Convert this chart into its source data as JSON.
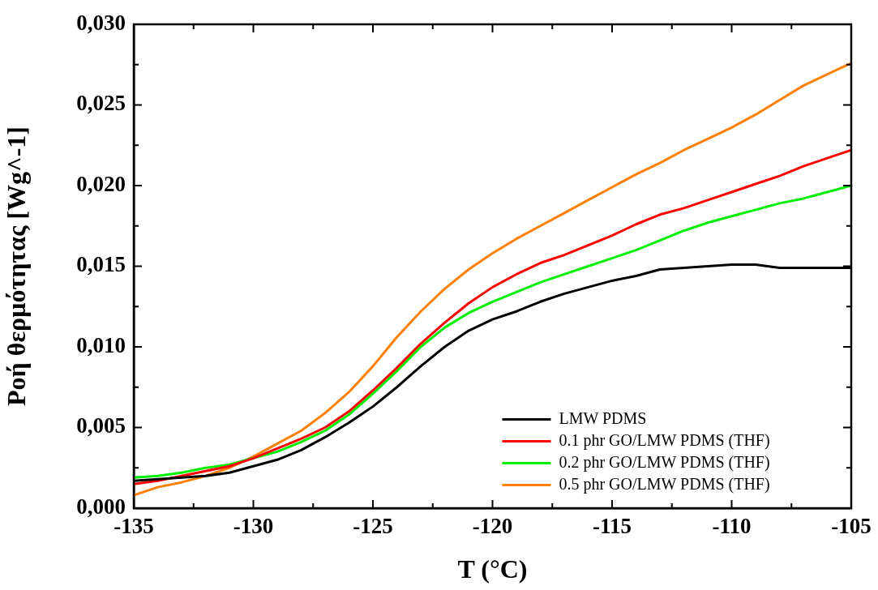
{
  "chart_data": {
    "type": "line",
    "xlabel": "T (°C)",
    "ylabel": "Ροή θερμότητας [Wg^-1]",
    "x": [
      -135,
      -134,
      -133,
      -132,
      -131,
      -130,
      -129,
      -128,
      -127,
      -126,
      -125,
      -124,
      -123,
      -122,
      -121,
      -120,
      -119,
      -118,
      -117,
      -116,
      -115,
      -114,
      -113,
      -112,
      -111,
      -110,
      -109,
      -108,
      -107,
      -106,
      -105
    ],
    "series": [
      {
        "name": "LMW PDMS",
        "color": "#000000",
        "values": [
          0.0017,
          0.0018,
          0.0019,
          0.002,
          0.0022,
          0.0026,
          0.003,
          0.0036,
          0.0044,
          0.0053,
          0.0063,
          0.0075,
          0.0088,
          0.01,
          0.011,
          0.0117,
          0.0122,
          0.0128,
          0.0133,
          0.0137,
          0.0141,
          0.0144,
          0.0148,
          0.0149,
          0.015,
          0.0151,
          0.0151,
          0.0149,
          0.0149,
          0.0149,
          0.0149
        ]
      },
      {
        "name": "0.1 phr GO/LMW PDMS (THF)",
        "color": "#ff0000",
        "values": [
          0.0015,
          0.0017,
          0.002,
          0.0023,
          0.0026,
          0.0031,
          0.0037,
          0.0043,
          0.005,
          0.006,
          0.0073,
          0.0087,
          0.0102,
          0.0115,
          0.0127,
          0.0137,
          0.0145,
          0.0152,
          0.0157,
          0.0163,
          0.0169,
          0.0176,
          0.0182,
          0.0186,
          0.0191,
          0.0196,
          0.0201,
          0.0206,
          0.0212,
          0.0217,
          0.0222
        ]
      },
      {
        "name": "0.2 phr GO/LMW PDMS (THF)",
        "color": "#00ee00",
        "values": [
          0.0019,
          0.002,
          0.0022,
          0.0025,
          0.0027,
          0.0031,
          0.0035,
          0.0041,
          0.0048,
          0.0058,
          0.0071,
          0.0085,
          0.01,
          0.0112,
          0.0121,
          0.0128,
          0.0134,
          0.014,
          0.0145,
          0.015,
          0.0155,
          0.016,
          0.0166,
          0.0172,
          0.0177,
          0.0181,
          0.0185,
          0.0189,
          0.0192,
          0.0196,
          0.02
        ]
      },
      {
        "name": "0.5 phr GO/LMW PDMS (THF)",
        "color": "#ff8000",
        "values": [
          0.0008,
          0.0013,
          0.0016,
          0.002,
          0.0025,
          0.0032,
          0.004,
          0.0048,
          0.0059,
          0.0072,
          0.0088,
          0.0106,
          0.0122,
          0.0136,
          0.0148,
          0.0158,
          0.0167,
          0.0175,
          0.0183,
          0.0191,
          0.0199,
          0.0207,
          0.0214,
          0.0222,
          0.0229,
          0.0236,
          0.0244,
          0.0253,
          0.0262,
          0.0269,
          0.0276
        ]
      }
    ],
    "xlim": [
      -135,
      -105
    ],
    "xticks": [
      -135,
      -130,
      -125,
      -120,
      -115,
      -110,
      -105
    ],
    "ylim": [
      0,
      0.03
    ],
    "yticks": [
      {
        "value": 0,
        "label": "0,000"
      },
      {
        "value": 0.005,
        "label": "0,005"
      },
      {
        "value": 0.01,
        "label": "0,010"
      },
      {
        "value": 0.015,
        "label": "0,015"
      },
      {
        "value": 0.02,
        "label": "0,020"
      },
      {
        "value": 0.025,
        "label": "0,025"
      },
      {
        "value": 0.03,
        "label": "0,030"
      }
    ],
    "grid": false,
    "legend": "bottom right",
    "marker": "none",
    "line_style": "solid"
  }
}
